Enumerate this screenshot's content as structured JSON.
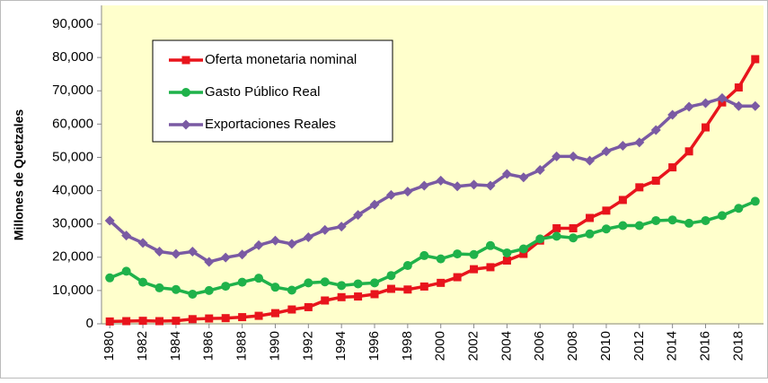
{
  "chart_data": {
    "type": "line",
    "ylabel": "Millones de Quetzales",
    "x": [
      1980,
      1981,
      1982,
      1983,
      1984,
      1985,
      1986,
      1987,
      1988,
      1989,
      1990,
      1991,
      1992,
      1993,
      1994,
      1995,
      1996,
      1997,
      1998,
      1999,
      2000,
      2001,
      2002,
      2003,
      2004,
      2005,
      2006,
      2007,
      2008,
      2009,
      2010,
      2011,
      2012,
      2013,
      2014,
      2015,
      2016,
      2017,
      2018,
      2019
    ],
    "xlim": [
      1979.5,
      2019.5
    ],
    "xticks": [
      1980,
      1982,
      1984,
      1986,
      1988,
      1990,
      1992,
      1994,
      1996,
      1998,
      2000,
      2002,
      2004,
      2006,
      2008,
      2010,
      2012,
      2014,
      2016,
      2018
    ],
    "ylim": [
      0,
      90000
    ],
    "yticks": [
      0,
      {
        "value": 10000,
        "label": "10,000"
      },
      {
        "value": 20000,
        "label": "20,000"
      },
      {
        "value": 30000,
        "label": "30,000"
      },
      {
        "value": 40000,
        "label": "40,000"
      },
      {
        "value": 50000,
        "label": "50,000"
      },
      {
        "value": 60000,
        "label": "60,000"
      },
      {
        "value": 70000,
        "label": "70,000"
      },
      {
        "value": 80000,
        "label": "80,000"
      },
      {
        "value": 90000,
        "label": "90,000"
      }
    ],
    "grid": false,
    "legend": "upper left",
    "series": [
      {
        "name": "Oferta monetaria nominal",
        "color": "#e8141c",
        "marker": "square",
        "values": [
          700,
          800,
          900,
          800,
          900,
          1400,
          1600,
          1700,
          2000,
          2400,
          3200,
          4300,
          5000,
          7000,
          8000,
          8200,
          8900,
          10500,
          10300,
          11200,
          12300,
          14000,
          16400,
          17000,
          19000,
          21000,
          25000,
          28700,
          28700,
          31800,
          34000,
          37200,
          41000,
          43000,
          47000,
          51800,
          59000,
          66500,
          71000,
          79500
        ]
      },
      {
        "name": "Gasto Público Real",
        "color": "#1fb24a",
        "marker": "circle",
        "values": [
          13800,
          15800,
          12500,
          10800,
          10300,
          8900,
          10000,
          11300,
          12500,
          13700,
          11000,
          10100,
          12300,
          12600,
          11500,
          12000,
          12300,
          14500,
          17500,
          20500,
          19500,
          21000,
          20800,
          23500,
          21300,
          22500,
          25500,
          26300,
          25800,
          27000,
          28500,
          29500,
          29500,
          31000,
          31200,
          30200,
          31000,
          32500,
          34700,
          36800
        ]
      },
      {
        "name": "Exportaciones Reales",
        "color": "#7a5aa3",
        "marker": "diamond",
        "values": [
          31000,
          26500,
          24300,
          21700,
          21000,
          21700,
          18600,
          19900,
          20800,
          23600,
          25000,
          24000,
          26000,
          28200,
          29200,
          32700,
          35800,
          38700,
          39700,
          41500,
          43000,
          41300,
          41800,
          41500,
          45000,
          44000,
          46200,
          50300,
          50300,
          49000,
          51800,
          53500,
          54500,
          58200,
          62800,
          65200,
          66300,
          67800,
          65400,
          65400
        ]
      }
    ]
  }
}
